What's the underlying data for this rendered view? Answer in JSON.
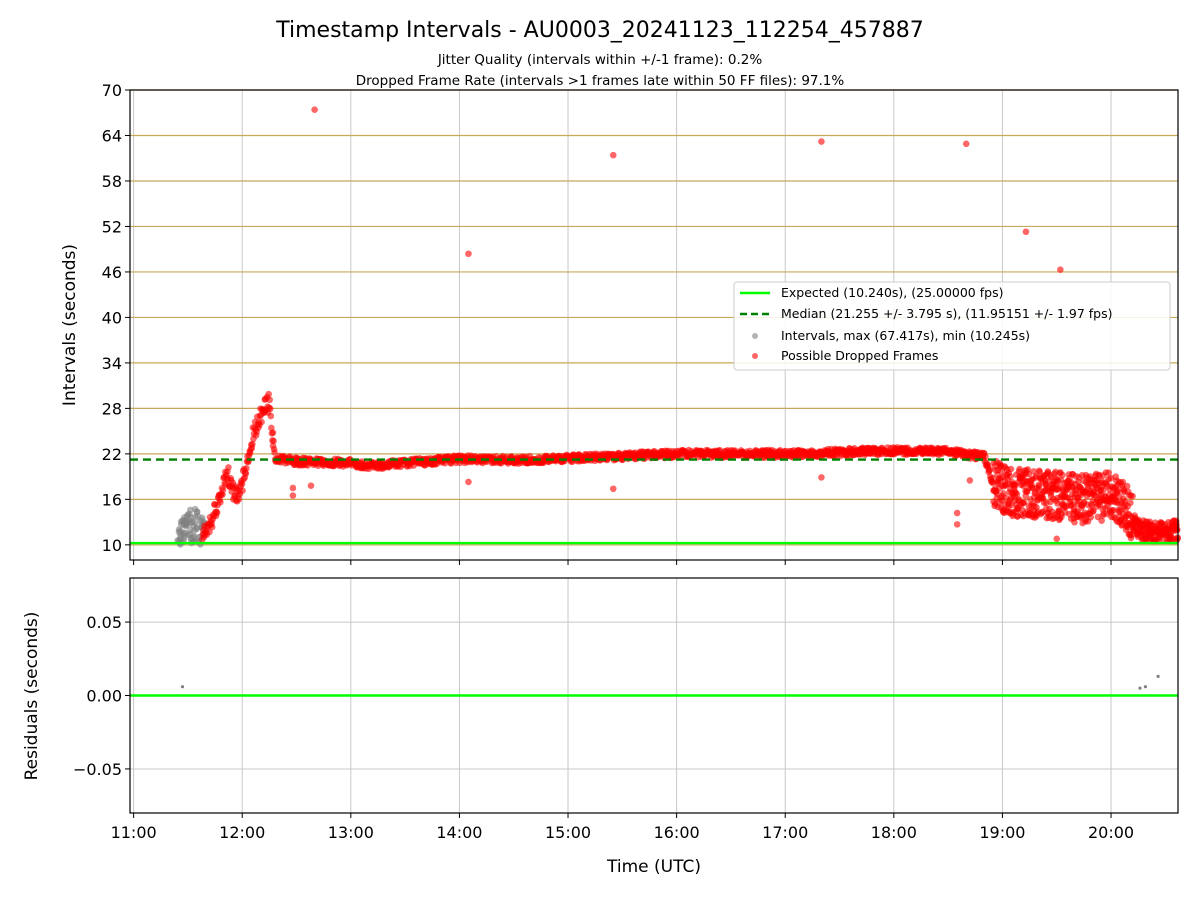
{
  "title": "Timestamp Intervals - AU0003_20241123_112254_457887",
  "subtitles": [
    "Jitter Quality (intervals within +/-1 frame): 0.2%",
    "Dropped Frame Rate (intervals >1 frames late within 50 FF files): 97.1%"
  ],
  "colors": {
    "expected": "#00ff00",
    "median": "#008000",
    "intervals": "#808080",
    "dropped": "#ff0000",
    "hgrid_top": "#c8a85a",
    "grid": "#c8c8c8"
  },
  "chart_data": [
    {
      "type": "scatter",
      "ylabel": "Intervals (seconds)",
      "ylim": [
        8,
        70
      ],
      "yticks": [
        "10",
        "16",
        "22",
        "28",
        "34",
        "40",
        "46",
        "52",
        "58",
        "64",
        "70"
      ],
      "xlim": [
        "10:58",
        "20:37"
      ],
      "grid": true,
      "legend_position": "center-right",
      "lines": [
        {
          "name": "Expected (10.240s), (25.00000 fps)",
          "y": 10.24,
          "style": "solid",
          "color": "#00ff00"
        },
        {
          "name": "Median (21.255 +/- 3.795 s), (11.95151 +/- 1.97 fps)",
          "y": 21.255,
          "style": "dashed",
          "color": "#008000"
        }
      ],
      "series": [
        {
          "name": "Intervals, max (67.417s), min (10.245s)",
          "color": "#808080",
          "points": [
            [
              "11:25",
              10.6
            ],
            [
              "11:26",
              11.8
            ],
            [
              "11:27",
              13.2
            ],
            [
              "11:28",
              10.9
            ],
            [
              "11:29",
              12.5
            ],
            [
              "11:30",
              14.0
            ],
            [
              "11:31",
              11.4
            ],
            [
              "11:32",
              13.6
            ],
            [
              "11:33",
              10.5
            ],
            [
              "11:34",
              12.9
            ],
            [
              "11:35",
              14.3
            ],
            [
              "11:36",
              11.0
            ],
            [
              "11:37",
              13.1
            ],
            [
              "11:38",
              12.2
            ]
          ]
        },
        {
          "name": "Possible Dropped Frames",
          "color": "#ff0000",
          "outliers": [
            [
              "12:40",
              67.4
            ],
            [
              "14:05",
              48.4
            ],
            [
              "15:25",
              61.4
            ],
            [
              "17:20",
              63.2
            ],
            [
              "18:40",
              62.9
            ],
            [
              "19:13",
              51.3
            ],
            [
              "19:32",
              46.3
            ],
            [
              "12:28",
              16.5
            ],
            [
              "12:28",
              17.5
            ],
            [
              "12:38",
              17.8
            ],
            [
              "14:05",
              18.3
            ],
            [
              "15:25",
              17.4
            ],
            [
              "17:20",
              18.9
            ],
            [
              "18:35",
              12.7
            ],
            [
              "18:35",
              14.2
            ],
            [
              "18:42",
              18.5
            ],
            [
              "19:30",
              10.8
            ],
            [
              "12:17",
              24.8
            ]
          ],
          "trend": [
            [
              "11:38",
              11.0
            ],
            [
              "11:42",
              12.5
            ],
            [
              "11:45",
              14.5
            ],
            [
              "11:48",
              16.5
            ],
            [
              "11:52",
              19.5
            ],
            [
              "11:55",
              17.0
            ],
            [
              "11:58",
              16.0
            ],
            [
              "12:00",
              18.0
            ],
            [
              "12:03",
              21.5
            ],
            [
              "12:06",
              24.5
            ],
            [
              "12:09",
              26.5
            ],
            [
              "12:12",
              28.0
            ],
            [
              "12:15",
              28.8
            ],
            [
              "12:18",
              21.5
            ],
            [
              "12:30",
              21.0
            ],
            [
              "13:00",
              20.8
            ],
            [
              "13:10",
              20.4
            ],
            [
              "13:30",
              20.8
            ],
            [
              "14:00",
              21.3
            ],
            [
              "14:30",
              21.2
            ],
            [
              "15:00",
              21.4
            ],
            [
              "15:30",
              21.7
            ],
            [
              "16:00",
              22.0
            ],
            [
              "16:30",
              22.0
            ],
            [
              "17:00",
              22.0
            ],
            [
              "17:30",
              22.2
            ],
            [
              "18:00",
              22.4
            ],
            [
              "18:30",
              22.3
            ],
            [
              "18:50",
              21.6
            ],
            [
              "18:55",
              18.0
            ],
            [
              "19:05",
              17.0
            ],
            [
              "19:30",
              16.5
            ],
            [
              "19:45",
              16.0
            ],
            [
              "20:00",
              16.5
            ],
            [
              "20:10",
              14.5
            ],
            [
              "20:15",
              12.0
            ],
            [
              "20:25",
              11.5
            ],
            [
              "20:37",
              12.0
            ]
          ]
        }
      ]
    },
    {
      "type": "scatter",
      "xlabel": "Time (UTC)",
      "ylabel": "Residuals (seconds)",
      "ylim": [
        -0.08,
        0.08
      ],
      "yticks": [
        "0.05",
        "0.00",
        "−0.05"
      ],
      "xticks": [
        "11:00",
        "12:00",
        "13:00",
        "14:00",
        "15:00",
        "16:00",
        "17:00",
        "18:00",
        "19:00",
        "20:00"
      ],
      "xlim": [
        "10:58",
        "20:37"
      ],
      "grid": true,
      "lines": [
        {
          "y": 0.0,
          "color": "#00ff00",
          "style": "solid"
        }
      ],
      "series": [
        {
          "color": "#808080",
          "points": [
            [
              "11:27",
              0.006
            ],
            [
              "20:16",
              0.005
            ],
            [
              "20:19",
              0.006
            ],
            [
              "20:26",
              0.013
            ]
          ]
        }
      ]
    }
  ]
}
